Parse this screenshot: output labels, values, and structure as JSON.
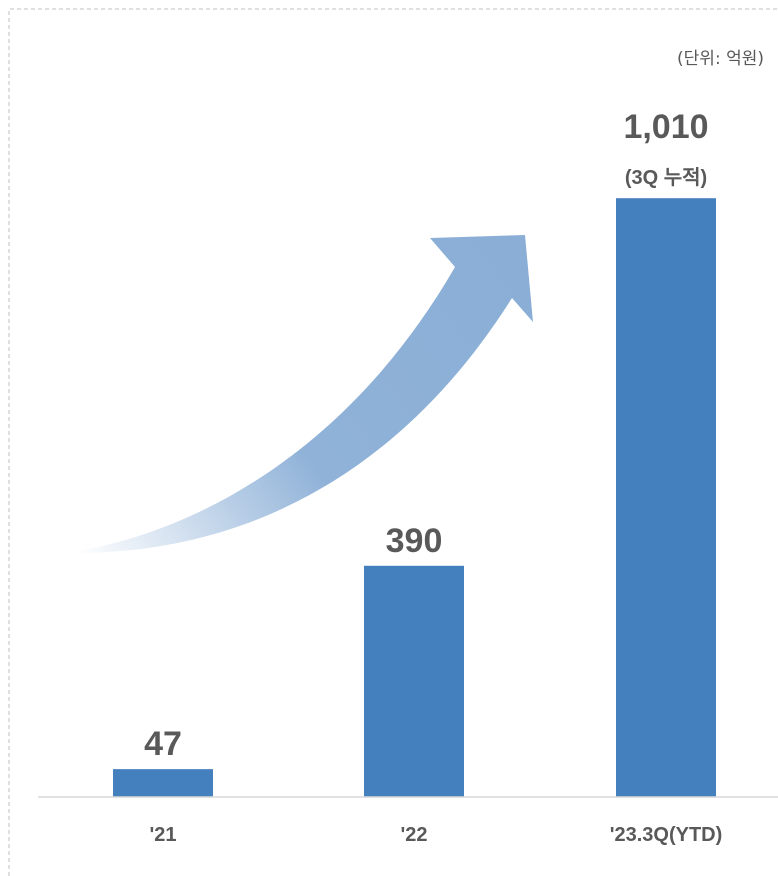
{
  "chart_data": {
    "type": "bar",
    "unit_label": "(단위: 억원)",
    "categories": [
      "'21",
      "'22",
      "'23.3Q(YTD)"
    ],
    "values": [
      47,
      390,
      1010
    ],
    "value_labels": [
      "47",
      "390",
      "1,010"
    ],
    "extra_labels": [
      "",
      "",
      "(3Q 누적)"
    ],
    "ylim": [
      0,
      1120
    ],
    "grid": false,
    "legend": "none",
    "colors": {
      "bar": "#4480be",
      "text": "#595959",
      "axis": "#d9d9d9",
      "border": "#bfbfbf",
      "arrow": "#8aaed6"
    }
  }
}
